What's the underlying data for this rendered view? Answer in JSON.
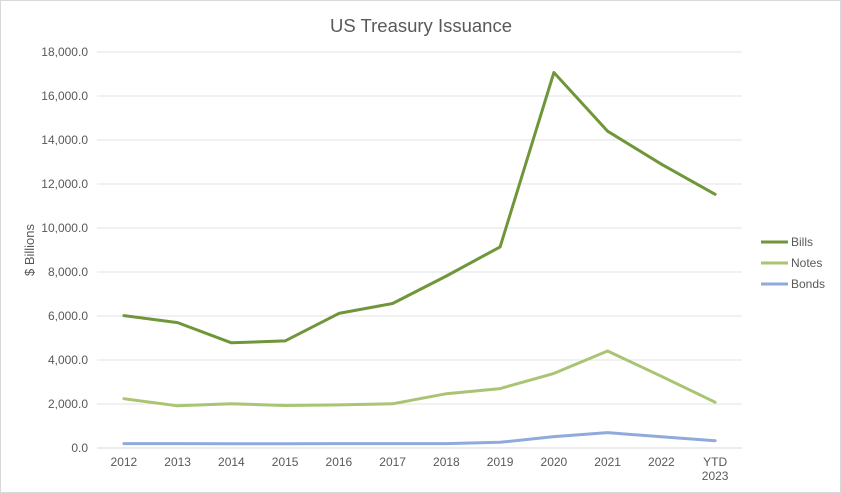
{
  "chart_data": {
    "type": "line",
    "title": "US Treasury Issuance",
    "xlabel": "",
    "ylabel": "$ Billions",
    "ylim": [
      0,
      18000
    ],
    "ytick_step": 2000,
    "ytick_labels": [
      "0.0",
      "2,000.0",
      "4,000.0",
      "6,000.0",
      "8,000.0",
      "10,000.0",
      "12,000.0",
      "14,000.0",
      "16,000.0",
      "18,000.0"
    ],
    "categories": [
      "2012",
      "2013",
      "2014",
      "2015",
      "2016",
      "2017",
      "2018",
      "2019",
      "2020",
      "2021",
      "2022",
      "YTD 2023"
    ],
    "grid": true,
    "legend_position": "right",
    "series": [
      {
        "name": "Bills",
        "color": "#70963a",
        "values": [
          6020,
          5700,
          4780,
          4870,
          6120,
          6570,
          7820,
          9140,
          17070,
          14400,
          12900,
          11530
        ]
      },
      {
        "name": "Notes",
        "color": "#a9c574",
        "values": [
          2240,
          1920,
          2010,
          1930,
          1960,
          2010,
          2470,
          2700,
          3390,
          4410,
          3260,
          2080
        ]
      },
      {
        "name": "Bonds",
        "color": "#8faadc",
        "values": [
          200,
          200,
          190,
          190,
          200,
          200,
          200,
          260,
          520,
          700,
          510,
          330
        ]
      }
    ]
  }
}
